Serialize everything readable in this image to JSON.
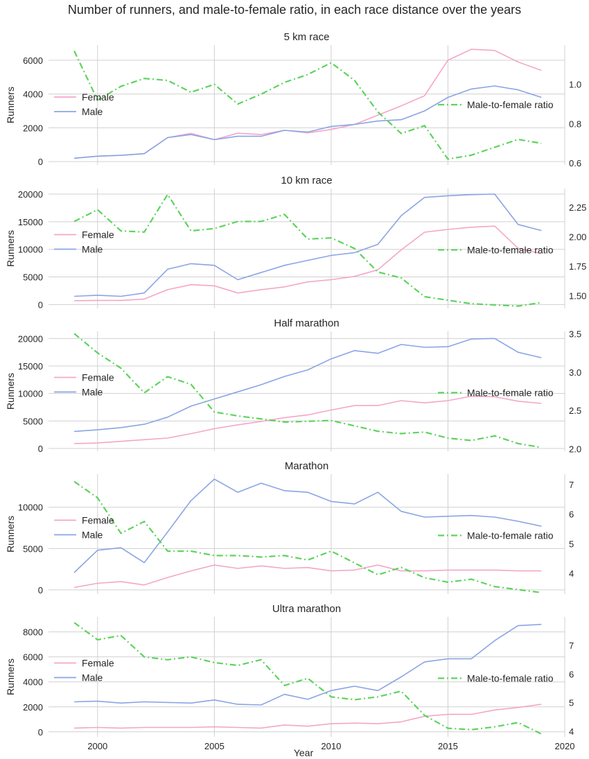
{
  "figure": {
    "suptitle": "Number of runners, and male-to-female ratio, in each race distance over the years",
    "xlabel": "Year",
    "colors": {
      "female": "#f4a6c8",
      "male": "#8aa4e4",
      "ratio": "#5dd35d",
      "grid": "#d0d0d0"
    }
  },
  "chart_data": [
    {
      "type": "line",
      "title": "5 km race",
      "ylabel": "Runners",
      "x": [
        1999,
        2000,
        2001,
        2002,
        2003,
        2004,
        2005,
        2006,
        2007,
        2008,
        2009,
        2010,
        2011,
        2012,
        2013,
        2014,
        2015,
        2016,
        2017,
        2018,
        2019
      ],
      "xlim": [
        1997.9,
        2020
      ],
      "xticks": [
        2000,
        2005,
        2010,
        2015,
        2020
      ],
      "ylim": [
        -200,
        6900
      ],
      "yticks": [
        0,
        2000,
        4000,
        6000
      ],
      "y2lim": [
        0.59,
        1.2
      ],
      "y2ticks": [
        0.6,
        0.8,
        1.0
      ],
      "y2tick_labels": [
        "0.6",
        "0.8",
        "1.0"
      ],
      "grid": true,
      "legend_left": "upper-left",
      "legend_right": "upper-right",
      "series": [
        {
          "name": "Female",
          "axis": "left",
          "values": [
            200,
            320,
            370,
            470,
            1420,
            1670,
            1300,
            1680,
            1600,
            1850,
            1700,
            1900,
            2200,
            2750,
            3300,
            3900,
            6000,
            6650,
            6580,
            5900,
            5400
          ]
        },
        {
          "name": "Male",
          "axis": "left",
          "values": [
            200,
            320,
            370,
            470,
            1420,
            1600,
            1300,
            1500,
            1500,
            1850,
            1750,
            2080,
            2200,
            2400,
            2480,
            3000,
            3800,
            4300,
            4480,
            4250,
            3800
          ]
        },
        {
          "name": "Male-to-female ratio",
          "axis": "right",
          "dashed": true,
          "values": [
            1.17,
            0.92,
            0.99,
            1.03,
            1.02,
            0.96,
            1.0,
            0.9,
            0.95,
            1.01,
            1.05,
            1.11,
            1.02,
            0.86,
            0.75,
            0.79,
            0.62,
            0.64,
            0.68,
            0.72,
            0.7
          ]
        }
      ]
    },
    {
      "type": "line",
      "title": "10 km race",
      "ylabel": "Runners",
      "x": [
        1999,
        2000,
        2001,
        2002,
        2003,
        2004,
        2005,
        2006,
        2007,
        2008,
        2009,
        2010,
        2011,
        2012,
        2013,
        2014,
        2015,
        2016,
        2017,
        2018,
        2019
      ],
      "xlim": [
        1997.9,
        2020
      ],
      "xticks": [
        2000,
        2005,
        2010,
        2015,
        2020
      ],
      "ylim": [
        -700,
        21000
      ],
      "yticks": [
        0,
        5000,
        10000,
        15000,
        20000
      ],
      "y2lim": [
        1.39,
        2.41
      ],
      "y2ticks": [
        1.5,
        1.75,
        2.0,
        2.25
      ],
      "y2tick_labels": [
        "1.50",
        "1.75",
        "2.00",
        "2.25"
      ],
      "grid": true,
      "legend_left": "center-left",
      "legend_right": "center-right",
      "series": [
        {
          "name": "Female",
          "axis": "left",
          "values": [
            700,
            750,
            750,
            1000,
            2700,
            3600,
            3400,
            2100,
            2700,
            3200,
            4100,
            4500,
            5100,
            6300,
            9900,
            13100,
            13600,
            14000,
            14200,
            10200,
            9200
          ]
        },
        {
          "name": "Male",
          "axis": "left",
          "values": [
            1500,
            1700,
            1500,
            2100,
            6400,
            7400,
            7100,
            4500,
            5800,
            7100,
            8000,
            8900,
            9400,
            10900,
            16100,
            19400,
            19700,
            19900,
            20000,
            14500,
            13400
          ]
        },
        {
          "name": "Male-to-female ratio",
          "axis": "right",
          "dashed": true,
          "values": [
            2.13,
            2.23,
            2.05,
            2.04,
            2.36,
            2.05,
            2.07,
            2.13,
            2.13,
            2.19,
            1.98,
            1.99,
            1.9,
            1.7,
            1.65,
            1.49,
            1.46,
            1.43,
            1.42,
            1.41,
            1.44
          ]
        }
      ]
    },
    {
      "type": "line",
      "title": "Half marathon",
      "ylabel": "Runners",
      "x": [
        1999,
        2000,
        2001,
        2002,
        2003,
        2004,
        2005,
        2006,
        2007,
        2008,
        2009,
        2010,
        2011,
        2012,
        2013,
        2014,
        2015,
        2016,
        2017,
        2018,
        2019
      ],
      "xlim": [
        1997.9,
        2020
      ],
      "xticks": [
        2000,
        2005,
        2010,
        2015,
        2020
      ],
      "ylim": [
        -500,
        21300
      ],
      "yticks": [
        0,
        5000,
        10000,
        15000,
        20000
      ],
      "y2lim": [
        1.97,
        3.53
      ],
      "y2ticks": [
        2.0,
        2.5,
        3.0,
        3.5
      ],
      "y2tick_labels": [
        "2.0",
        "2.5",
        "3.0",
        "3.5"
      ],
      "grid": true,
      "legend_left": "center-left",
      "legend_right": "center-right",
      "series": [
        {
          "name": "Female",
          "axis": "left",
          "values": [
            900,
            1000,
            1300,
            1600,
            1900,
            2700,
            3600,
            4300,
            4900,
            5600,
            6100,
            7000,
            7800,
            7800,
            8700,
            8300,
            8700,
            9500,
            9400,
            8600,
            8200
          ]
        },
        {
          "name": "Male",
          "axis": "left",
          "values": [
            3100,
            3400,
            3800,
            4400,
            5700,
            7700,
            9000,
            10300,
            11600,
            13100,
            14300,
            16300,
            17800,
            17300,
            18900,
            18400,
            18500,
            19900,
            20000,
            17500,
            16500
          ]
        },
        {
          "name": "Male-to-female ratio",
          "axis": "right",
          "dashed": true,
          "values": [
            3.5,
            3.25,
            3.05,
            2.73,
            2.94,
            2.84,
            2.48,
            2.43,
            2.39,
            2.35,
            2.36,
            2.37,
            2.3,
            2.23,
            2.2,
            2.22,
            2.14,
            2.11,
            2.17,
            2.07,
            2.02
          ]
        }
      ]
    },
    {
      "type": "line",
      "title": "Marathon",
      "ylabel": "Runners",
      "x": [
        1999,
        2000,
        2001,
        2002,
        2003,
        2004,
        2005,
        2006,
        2007,
        2008,
        2009,
        2010,
        2011,
        2012,
        2013,
        2014,
        2015,
        2016,
        2017,
        2018,
        2019
      ],
      "xlim": [
        1997.9,
        2020
      ],
      "xticks": [
        2000,
        2005,
        2010,
        2015,
        2020
      ],
      "ylim": [
        -500,
        14000
      ],
      "yticks": [
        0,
        5000,
        10000
      ],
      "y2lim": [
        3.3,
        7.35
      ],
      "y2ticks": [
        4,
        5,
        6,
        7
      ],
      "y2tick_labels": [
        "4",
        "5",
        "6",
        "7"
      ],
      "grid": true,
      "legend_left": "center-left",
      "legend_right": "center-right",
      "series": [
        {
          "name": "Female",
          "axis": "left",
          "values": [
            300,
            800,
            1000,
            600,
            1500,
            2300,
            3000,
            2600,
            2900,
            2600,
            2700,
            2300,
            2400,
            3000,
            2300,
            2300,
            2400,
            2400,
            2400,
            2300,
            2300
          ]
        },
        {
          "name": "Male",
          "axis": "left",
          "values": [
            2100,
            4800,
            5100,
            3300,
            7000,
            10800,
            13400,
            11800,
            12900,
            12000,
            11800,
            10700,
            10400,
            11800,
            9500,
            8800,
            8900,
            9000,
            8800,
            8300,
            7700
          ]
        },
        {
          "name": "Male-to-female ratio",
          "axis": "right",
          "dashed": true,
          "values": [
            7.1,
            6.55,
            5.35,
            5.75,
            4.75,
            4.75,
            4.6,
            4.6,
            4.55,
            4.6,
            4.45,
            4.75,
            4.35,
            3.95,
            4.2,
            3.85,
            3.7,
            3.8,
            3.55,
            3.45,
            3.35
          ]
        }
      ]
    },
    {
      "type": "line",
      "title": "Ultra marathon",
      "ylabel": "Runners",
      "x": [
        1999,
        2000,
        2001,
        2002,
        2003,
        2004,
        2005,
        2006,
        2007,
        2008,
        2009,
        2010,
        2011,
        2012,
        2013,
        2014,
        2015,
        2016,
        2017,
        2018,
        2019
      ],
      "xlim": [
        1997.9,
        2020
      ],
      "xticks": [
        2000,
        2005,
        2010,
        2015,
        2020
      ],
      "ylim": [
        -400,
        9200
      ],
      "yticks": [
        0,
        2000,
        4000,
        6000,
        8000
      ],
      "y2lim": [
        3.8,
        8.0
      ],
      "y2ticks": [
        4,
        5,
        6,
        7
      ],
      "y2tick_labels": [
        "4",
        "5",
        "6",
        "7"
      ],
      "grid": true,
      "legend_left": "center-left",
      "legend_right": "center-right",
      "series": [
        {
          "name": "Female",
          "axis": "left",
          "values": [
            300,
            350,
            300,
            350,
            350,
            350,
            400,
            350,
            300,
            550,
            450,
            650,
            700,
            650,
            800,
            1250,
            1400,
            1400,
            1750,
            1950,
            2200
          ]
        },
        {
          "name": "Male",
          "axis": "left",
          "values": [
            2400,
            2450,
            2300,
            2400,
            2350,
            2300,
            2550,
            2200,
            2150,
            3000,
            2600,
            3300,
            3650,
            3300,
            4400,
            5600,
            5850,
            5850,
            7300,
            8500,
            8600
          ]
        },
        {
          "name": "Male-to-female ratio",
          "axis": "right",
          "dashed": true,
          "values": [
            7.8,
            7.2,
            7.35,
            6.6,
            6.5,
            6.6,
            6.4,
            6.3,
            6.5,
            5.6,
            5.85,
            5.2,
            5.1,
            5.2,
            5.4,
            4.55,
            4.1,
            4.05,
            4.15,
            4.3,
            3.9
          ]
        }
      ]
    }
  ]
}
